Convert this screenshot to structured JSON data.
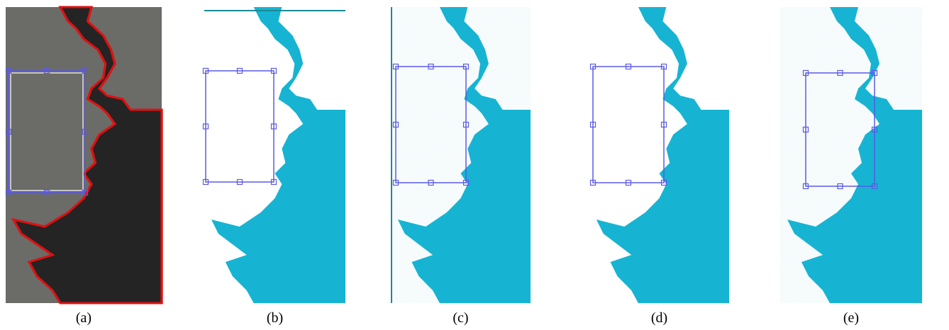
{
  "panels": [
    {
      "caption": "(a)"
    },
    {
      "caption": "(b)"
    },
    {
      "caption": "(c)"
    },
    {
      "caption": "(d)"
    },
    {
      "caption": "(e)"
    }
  ]
}
